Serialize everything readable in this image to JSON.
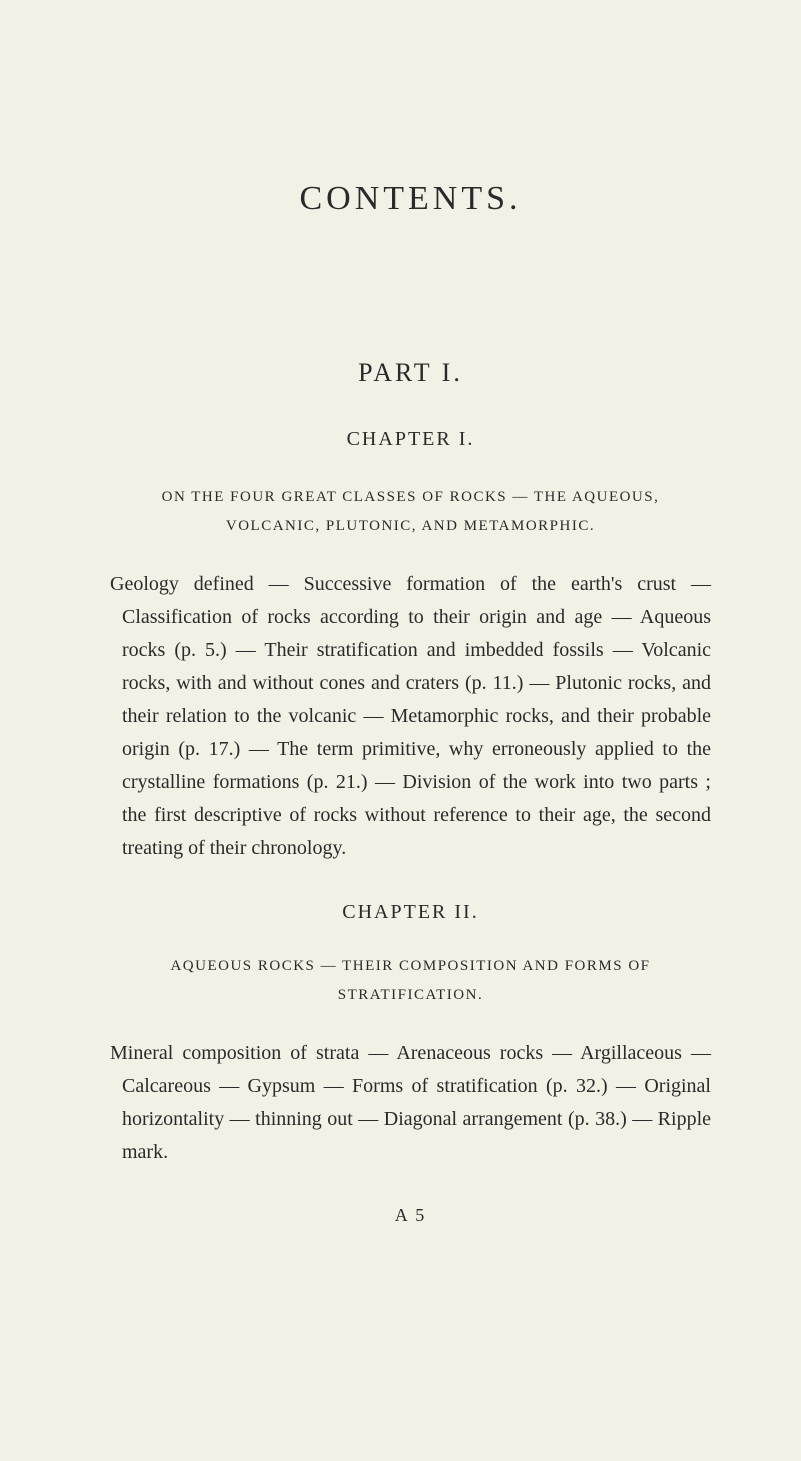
{
  "page": {
    "title": "CONTENTS.",
    "part": "PART I.",
    "chapter1": {
      "heading": "CHAPTER I.",
      "subtitle": "ON THE FOUR GREAT CLASSES OF ROCKS — THE AQUEOUS, VOLCANIC, PLUTONIC, AND METAMORPHIC.",
      "body": "Geology defined — Successive formation of the earth's crust — Classification of rocks according to their origin and age — Aqueous rocks (p. 5.) — Their stratification and imbedded fossils — Volcanic rocks, with and without cones and craters (p. 11.) — Plutonic rocks, and their relation to the volcanic — Metamorphic rocks, and their probable origin (p. 17.) — The term primitive, why erroneously applied to the crystalline formations (p. 21.) — Division of the work into two parts ; the first descriptive of rocks without reference to their age, the second treating of their chronology."
    },
    "chapter2": {
      "heading": "CHAPTER II.",
      "subtitle": "AQUEOUS ROCKS — THEIR COMPOSITION AND FORMS OF STRATIFICATION.",
      "body": "Mineral composition of strata — Arenaceous rocks — Argillaceous — Calcareous — Gypsum — Forms of stratification (p. 32.) — Original horizontality — thinning out — Diagonal arrangement (p. 38.) — Ripple mark."
    },
    "signature": "A 5"
  },
  "style": {
    "background_color": "#f3f0e5",
    "text_color": "#2a2a2a",
    "title_fontsize": 34,
    "part_fontsize": 26,
    "chapter_heading_fontsize": 20,
    "subtitle_fontsize": 15,
    "body_fontsize": 20,
    "signature_fontsize": 18,
    "font_family": "Georgia, Times New Roman, serif"
  }
}
